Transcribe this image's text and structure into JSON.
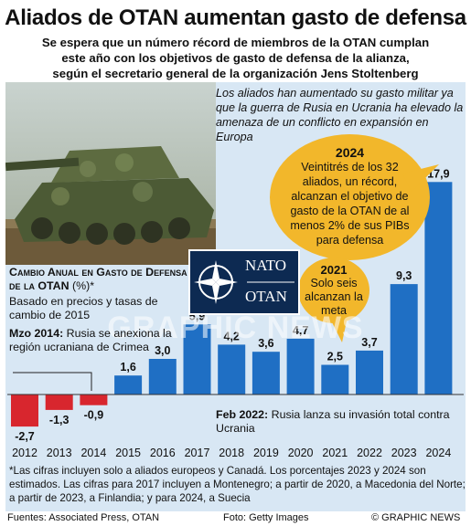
{
  "header": {
    "title": "Aliados de OTAN aumentan gasto de defensa",
    "subtitle_lines": [
      "Se espera que un número récord de miembros de la OTAN cumplan",
      "este año con los objetivos de gasto de defensa de la alianza,",
      "según el secretario general de la organización Jens Stoltenberg"
    ]
  },
  "intro": "Los aliados han aumentado su gasto militar ya que la guerra de Rusia en Ucrania ha elevado la amenaza de un conflicto en expansión en Europa",
  "callouts": {
    "c2024": {
      "year": "2024",
      "text": "Veintitrés de los 32 aliados, un récord, alcanzan el objetivo de gasto de la OTAN de al menos 2% de sus PIBs para defensa"
    },
    "c2021": {
      "year": "2021",
      "text": "Solo seis alcanzan la meta"
    }
  },
  "annotations": {
    "mzo2014_label": "Mzo 2014:",
    "mzo2014_text": "Rusia se anexiona la región ucraniana de Crimea",
    "feb2022_label": "Feb 2022:",
    "feb2022_text": "Rusia lanza su invasión total contra Ucrania"
  },
  "nato_badge": {
    "line1": "NATO",
    "line2": "OTAN"
  },
  "watermark": "GRAPHIC NEWS",
  "footer": {
    "footnote": "*Las cifras incluyen solo a aliados europeos y Canadá. Los porcentajes 2023 y 2024 son estimados. Las cifras para 2017 incluyen a Montenegro; a partir de 2020, a Macedonia del Norte; a partir de 2023, a Finlandia; y para 2024, a Suecia",
    "sources": "Fuentes: Associated Press, OTAN",
    "photo": "Foto: Getty Images",
    "copyright": "© GRAPHIC NEWS"
  },
  "colors": {
    "positive": "#1f6fc4",
    "negative": "#d8262e",
    "panel": "#d8e7f4",
    "callout": "#f2b72b"
  },
  "chart_data": {
    "type": "bar",
    "title": "Cambio Anual en Gasto de Defensa de la OTAN",
    "ylabel": "(%)*",
    "basis": "Basado en precios y tasas de cambio de 2015",
    "categories": [
      "2012",
      "2013",
      "2014",
      "2015",
      "2016",
      "2017",
      "2018",
      "2019",
      "2020",
      "2021",
      "2022",
      "2023",
      "2024"
    ],
    "values": [
      -2.7,
      -1.3,
      -0.9,
      1.6,
      3.0,
      5.9,
      4.2,
      3.6,
      4.7,
      2.5,
      3.7,
      9.3,
      17.9
    ],
    "value_labels": [
      "-2,7",
      "-1,3",
      "-0,9",
      "1,6",
      "3,0",
      "5,9",
      "4,2",
      "3,6",
      "4,7",
      "2,5",
      "3,7",
      "9,3",
      "17,9"
    ],
    "ylim": [
      -3,
      18
    ]
  }
}
